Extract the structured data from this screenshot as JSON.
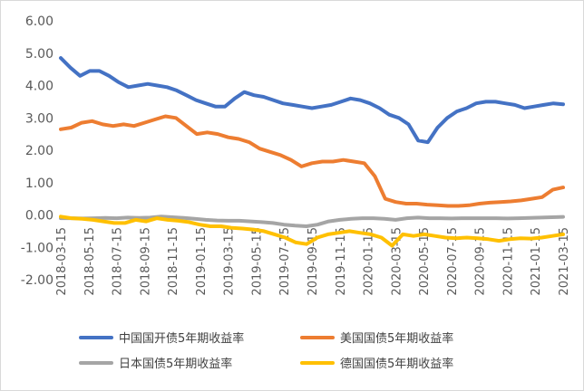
{
  "chart_data": {
    "type": "line",
    "title": "",
    "xlabel": "",
    "ylabel": "",
    "ylim": [
      -2.0,
      6.0
    ],
    "y_ticks": [
      "6.00",
      "5.00",
      "4.00",
      "3.00",
      "2.00",
      "1.00",
      "0.00",
      "-1.00",
      "-2.00"
    ],
    "x_ticks": [
      "2018-03-15",
      "2018-05-15",
      "2018-07-15",
      "2018-09-15",
      "2018-11-15",
      "2019-01-15",
      "2019-03-15",
      "2019-05-15",
      "2019-07-15",
      "2019-09-15",
      "2019-11-15",
      "2020-01-15",
      "2020-03-15",
      "2020-05-15",
      "2020-07-15",
      "2020-09-15",
      "2020-11-15",
      "2021-01-15",
      "2021-03-15"
    ],
    "grid": false,
    "legend_position": "bottom",
    "series": [
      {
        "name": "中国国开债5年期收益率",
        "color": "#4472C4",
        "values": [
          4.85,
          4.55,
          4.3,
          4.45,
          4.45,
          4.3,
          4.1,
          3.95,
          4.0,
          4.05,
          4.0,
          3.95,
          3.85,
          3.7,
          3.55,
          3.45,
          3.35,
          3.35,
          3.6,
          3.8,
          3.7,
          3.65,
          3.55,
          3.45,
          3.4,
          3.35,
          3.3,
          3.35,
          3.4,
          3.5,
          3.6,
          3.55,
          3.45,
          3.3,
          3.1,
          3.0,
          2.8,
          2.3,
          2.25,
          2.7,
          3.0,
          3.2,
          3.3,
          3.45,
          3.5,
          3.5,
          3.45,
          3.4,
          3.3,
          3.35,
          3.4,
          3.45,
          3.42
        ]
      },
      {
        "name": "美国国债5年期收益率",
        "color": "#ED7D31",
        "values": [
          2.65,
          2.7,
          2.85,
          2.9,
          2.8,
          2.75,
          2.8,
          2.75,
          2.85,
          2.95,
          3.05,
          3.0,
          2.75,
          2.5,
          2.55,
          2.5,
          2.4,
          2.35,
          2.25,
          2.05,
          1.95,
          1.85,
          1.7,
          1.5,
          1.6,
          1.65,
          1.65,
          1.7,
          1.65,
          1.6,
          1.2,
          0.5,
          0.4,
          0.35,
          0.35,
          0.32,
          0.3,
          0.28,
          0.28,
          0.3,
          0.35,
          0.38,
          0.4,
          0.42,
          0.45,
          0.5,
          0.55,
          0.78,
          0.85
        ]
      },
      {
        "name": "日本国债5年期收益率",
        "color": "#A5A5A5",
        "values": [
          -0.1,
          -0.1,
          -0.11,
          -0.1,
          -0.09,
          -0.1,
          -0.08,
          -0.09,
          -0.08,
          -0.05,
          -0.07,
          -0.09,
          -0.12,
          -0.15,
          -0.17,
          -0.18,
          -0.18,
          -0.2,
          -0.22,
          -0.25,
          -0.3,
          -0.33,
          -0.35,
          -0.3,
          -0.2,
          -0.15,
          -0.12,
          -0.1,
          -0.1,
          -0.12,
          -0.15,
          -0.1,
          -0.08,
          -0.1,
          -0.1,
          -0.11,
          -0.1,
          -0.1,
          -0.1,
          -0.1,
          -0.11,
          -0.1,
          -0.09,
          -0.08,
          -0.07,
          -0.06
        ]
      },
      {
        "name": "德国国债5年期收益率",
        "color": "#FFC000",
        "values": [
          -0.05,
          -0.1,
          -0.12,
          -0.15,
          -0.2,
          -0.25,
          -0.25,
          -0.15,
          -0.2,
          -0.1,
          -0.15,
          -0.18,
          -0.22,
          -0.3,
          -0.35,
          -0.35,
          -0.4,
          -0.42,
          -0.45,
          -0.5,
          -0.6,
          -0.7,
          -0.85,
          -0.9,
          -0.7,
          -0.6,
          -0.55,
          -0.5,
          -0.55,
          -0.6,
          -0.7,
          -0.95,
          -0.6,
          -0.65,
          -0.6,
          -0.65,
          -0.7,
          -0.72,
          -0.7,
          -0.72,
          -0.75,
          -0.8,
          -0.75,
          -0.72,
          -0.73,
          -0.7,
          -0.65,
          -0.6
        ]
      }
    ]
  }
}
